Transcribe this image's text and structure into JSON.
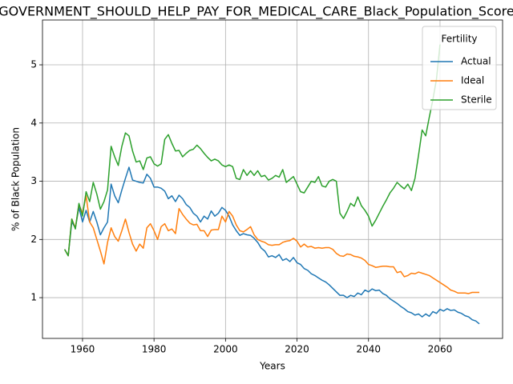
{
  "chart_data": {
    "type": "line",
    "title": "GOVERNMENT_SHOULD_HELP_PAY_FOR_MEDICAL_CARE_Black_Population_Score",
    "xlabel": "Years",
    "ylabel": "% of Black Population",
    "x": [
      1955,
      1956,
      1957,
      1958,
      1959,
      1960,
      1961,
      1962,
      1963,
      1964,
      1965,
      1966,
      1967,
      1968,
      1969,
      1970,
      1971,
      1972,
      1973,
      1974,
      1975,
      1976,
      1977,
      1978,
      1979,
      1980,
      1981,
      1982,
      1983,
      1984,
      1985,
      1986,
      1987,
      1988,
      1989,
      1990,
      1991,
      1992,
      1993,
      1994,
      1995,
      1996,
      1997,
      1998,
      1999,
      2000,
      2001,
      2002,
      2003,
      2004,
      2005,
      2006,
      2007,
      2008,
      2009,
      2010,
      2011,
      2012,
      2013,
      2014,
      2015,
      2016,
      2017,
      2018,
      2019,
      2020,
      2021,
      2022,
      2023,
      2024,
      2025,
      2026,
      2027,
      2028,
      2029,
      2030,
      2031,
      2032,
      2033,
      2034,
      2035,
      2036,
      2037,
      2038,
      2039,
      2040,
      2041,
      2042,
      2043,
      2044,
      2045,
      2046,
      2047,
      2048,
      2049,
      2050,
      2051,
      2052,
      2053,
      2054,
      2055,
      2056,
      2057,
      2058,
      2059,
      2060,
      2061,
      2062,
      2063,
      2064,
      2065,
      2066,
      2067,
      2068,
      2069,
      2070,
      2071
    ],
    "series": [
      {
        "name": "Actual",
        "color": "#1f77b4",
        "values": [
          1.83,
          1.72,
          2.3,
          2.2,
          2.55,
          2.3,
          2.5,
          2.3,
          2.48,
          2.3,
          2.08,
          2.2,
          2.3,
          2.95,
          2.75,
          2.63,
          2.85,
          3.05,
          3.24,
          3.02,
          3.0,
          2.98,
          2.97,
          3.12,
          3.05,
          2.9,
          2.9,
          2.88,
          2.83,
          2.7,
          2.75,
          2.65,
          2.76,
          2.7,
          2.6,
          2.55,
          2.45,
          2.4,
          2.3,
          2.4,
          2.35,
          2.49,
          2.4,
          2.45,
          2.55,
          2.5,
          2.4,
          2.25,
          2.15,
          2.07,
          2.1,
          2.08,
          2.07,
          2.02,
          1.95,
          1.85,
          1.8,
          1.7,
          1.72,
          1.69,
          1.74,
          1.64,
          1.67,
          1.62,
          1.69,
          1.6,
          1.57,
          1.5,
          1.47,
          1.41,
          1.38,
          1.34,
          1.3,
          1.27,
          1.22,
          1.16,
          1.1,
          1.04,
          1.04,
          1.0,
          1.04,
          1.02,
          1.08,
          1.05,
          1.13,
          1.1,
          1.15,
          1.12,
          1.13,
          1.07,
          1.04,
          0.98,
          0.94,
          0.9,
          0.85,
          0.81,
          0.76,
          0.74,
          0.7,
          0.72,
          0.67,
          0.72,
          0.68,
          0.76,
          0.73,
          0.8,
          0.77,
          0.81,
          0.78,
          0.79,
          0.75,
          0.73,
          0.69,
          0.67,
          0.62,
          0.6,
          0.55
        ]
      },
      {
        "name": "Ideal",
        "color": "#ff7f0e",
        "values": [
          1.83,
          1.72,
          2.35,
          2.2,
          2.6,
          2.45,
          2.75,
          2.3,
          2.2,
          2.0,
          1.8,
          1.58,
          1.95,
          2.2,
          2.05,
          1.97,
          2.15,
          2.35,
          2.12,
          1.92,
          1.8,
          1.92,
          1.85,
          2.2,
          2.27,
          2.15,
          2.0,
          2.22,
          2.27,
          2.15,
          2.18,
          2.1,
          2.53,
          2.43,
          2.35,
          2.28,
          2.25,
          2.26,
          2.15,
          2.15,
          2.05,
          2.16,
          2.17,
          2.17,
          2.4,
          2.3,
          2.48,
          2.4,
          2.25,
          2.15,
          2.13,
          2.17,
          2.22,
          2.08,
          2.0,
          1.97,
          1.95,
          1.91,
          1.9,
          1.91,
          1.91,
          1.95,
          1.97,
          1.98,
          2.02,
          1.97,
          1.87,
          1.92,
          1.87,
          1.88,
          1.85,
          1.86,
          1.85,
          1.86,
          1.86,
          1.83,
          1.76,
          1.72,
          1.71,
          1.75,
          1.74,
          1.71,
          1.7,
          1.68,
          1.64,
          1.57,
          1.55,
          1.52,
          1.53,
          1.54,
          1.54,
          1.53,
          1.53,
          1.43,
          1.45,
          1.36,
          1.38,
          1.42,
          1.41,
          1.44,
          1.42,
          1.4,
          1.38,
          1.34,
          1.3,
          1.26,
          1.22,
          1.18,
          1.13,
          1.11,
          1.08,
          1.08,
          1.08,
          1.07,
          1.09,
          1.09,
          1.09
        ]
      },
      {
        "name": "Sterile",
        "color": "#2ca02c",
        "values": [
          1.83,
          1.72,
          2.35,
          2.18,
          2.62,
          2.4,
          2.82,
          2.65,
          2.98,
          2.78,
          2.52,
          2.65,
          2.85,
          3.6,
          3.42,
          3.27,
          3.6,
          3.83,
          3.78,
          3.52,
          3.33,
          3.35,
          3.2,
          3.4,
          3.42,
          3.3,
          3.26,
          3.3,
          3.72,
          3.8,
          3.65,
          3.52,
          3.53,
          3.42,
          3.48,
          3.53,
          3.55,
          3.62,
          3.56,
          3.48,
          3.41,
          3.35,
          3.38,
          3.35,
          3.28,
          3.25,
          3.28,
          3.25,
          3.05,
          3.03,
          3.2,
          3.1,
          3.18,
          3.1,
          3.18,
          3.08,
          3.1,
          3.02,
          3.05,
          3.1,
          3.07,
          3.2,
          2.98,
          3.03,
          3.08,
          2.95,
          2.82,
          2.8,
          2.9,
          3.0,
          2.98,
          3.08,
          2.92,
          2.9,
          3.0,
          3.03,
          3.0,
          2.45,
          2.36,
          2.48,
          2.62,
          2.57,
          2.73,
          2.58,
          2.5,
          2.4,
          2.23,
          2.33,
          2.45,
          2.57,
          2.68,
          2.8,
          2.88,
          2.98,
          2.92,
          2.87,
          2.95,
          2.84,
          3.05,
          3.45,
          3.88,
          3.78,
          4.1,
          4.4,
          4.75,
          5.35,
          null,
          null,
          null,
          null,
          null,
          null,
          null,
          null,
          null,
          null,
          null
        ]
      }
    ],
    "xlim": [
      1948.8,
      2077.5
    ],
    "ylim": [
      0.3,
      5.77
    ],
    "xticks": [
      1960,
      1980,
      2000,
      2020,
      2040,
      2060
    ],
    "yticks": [
      1,
      2,
      3,
      4,
      5
    ],
    "grid": true,
    "legend_title": "Fertility",
    "legend_loc": "upper right"
  }
}
